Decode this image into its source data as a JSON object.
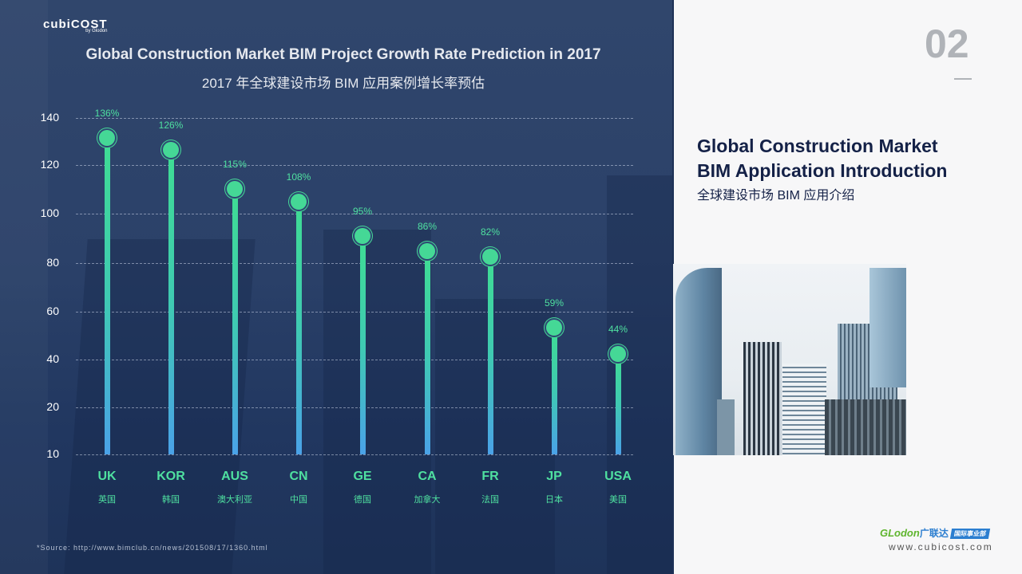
{
  "header": {
    "logo": "cubiCOST",
    "logo_sub": "by Glodon"
  },
  "chart_title_en": "Global Construction Market BIM Project Growth Rate Prediction in 2017",
  "chart_title_cn": "2017 年全球建设市场 BIM 应用案例增长率预估",
  "source_note": "*Source: http://www.bimclub.cn/news/201508/17/1360.html",
  "right_panel": {
    "page_number": "02",
    "title_line1": "Global Construction Market",
    "title_line2": "BIM Application Introduction",
    "title_cn": "全球建设市场 BIM 应用介绍",
    "brand": "GLodon",
    "brand_cn": "广联达",
    "brand_tag": "国际事业部",
    "website": "www.cubicost.com"
  },
  "colors": {
    "panel_bg": "#2b4169",
    "accent_green": "#45d896",
    "bar_bottom_blue": "#4aa2e8",
    "right_title": "#142147",
    "page_number": "#b0b3b8"
  },
  "chart_data": {
    "type": "bar",
    "style": "lollipop",
    "title": "Global Construction Market BIM Project Growth Rate Prediction in 2017",
    "subtitle": "2017 年全球建设市场 BIM 应用案例增长率预估",
    "xlabel": "",
    "ylabel": "",
    "y_ticks": [
      "140",
      "120",
      "100",
      "80",
      "60",
      "40",
      "20",
      "10"
    ],
    "ylim": [
      10,
      140
    ],
    "grid": true,
    "legend": "none",
    "categories": [
      "UK",
      "KOR",
      "AUS",
      "CN",
      "GE",
      "CA",
      "FR",
      "JP",
      "USA"
    ],
    "categories_cn": [
      "英国",
      "韩国",
      "澳大利亚",
      "中国",
      "德国",
      "加拿大",
      "法国",
      "日本",
      "美国"
    ],
    "values": [
      136,
      126,
      115,
      108,
      95,
      86,
      82,
      59,
      44
    ],
    "value_labels": [
      "136%",
      "126%",
      "115%",
      "108%",
      "95%",
      "86%",
      "82%",
      "59%",
      "44%"
    ],
    "unit": "%"
  }
}
